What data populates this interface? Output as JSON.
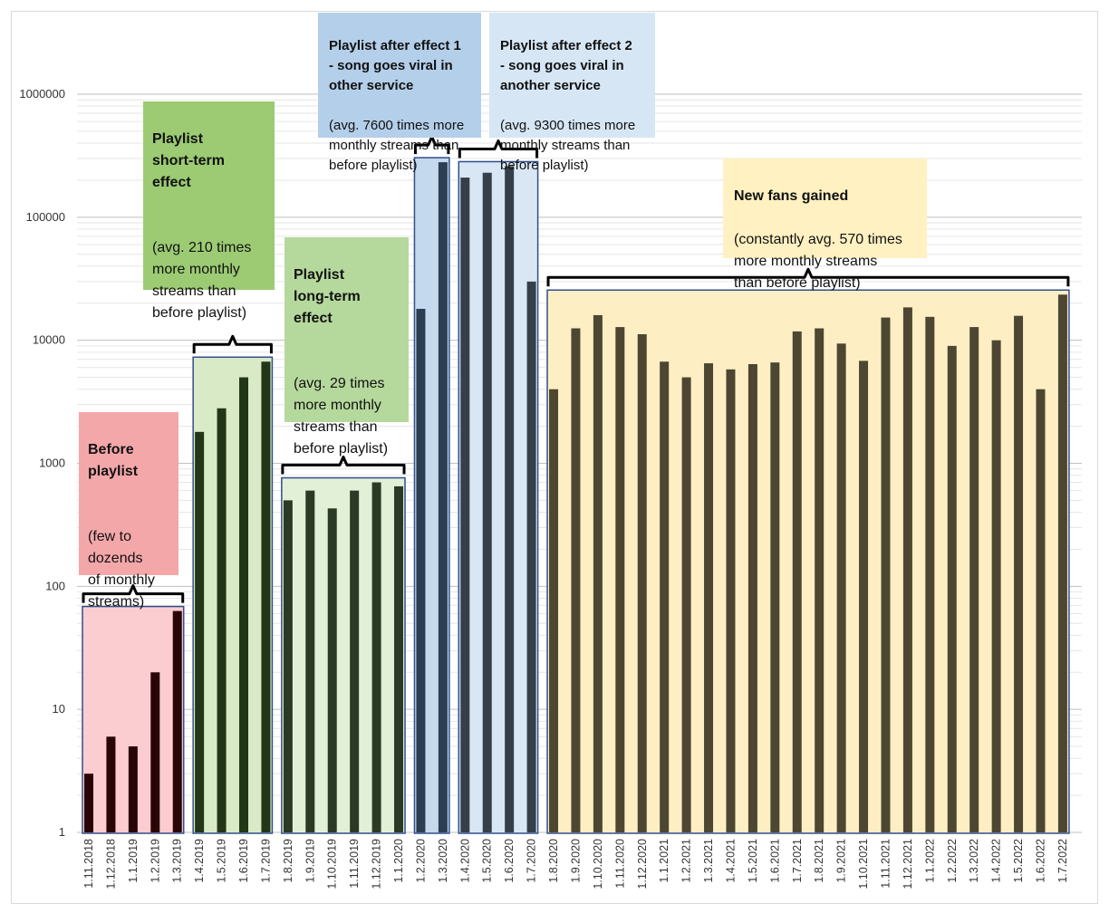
{
  "chart_data": {
    "type": "bar",
    "scale": "log",
    "ylim": [
      1,
      1000000
    ],
    "yticks": [
      "1",
      "10",
      "100",
      "1000",
      "10000",
      "100000",
      "1000000"
    ],
    "ytick_values": [
      1,
      10,
      100,
      1000,
      10000,
      100000,
      1000000
    ],
    "categories": [
      "1.11.2018",
      "1.12.2018",
      "1.1.2019",
      "1.2.2019",
      "1.3.2019",
      "1.4.2019",
      "1.5.2019",
      "1.6.2019",
      "1.7.2019",
      "1.8.2019",
      "1.9.2019",
      "1.10.2019",
      "1.11.2019",
      "1.12.2019",
      "1.1.2020",
      "1.2.2020",
      "1.3.2020",
      "1.4.2020",
      "1.5.2020",
      "1.6.2020",
      "1.7.2020",
      "1.8.2020",
      "1.9.2020",
      "1.10.2020",
      "1.11.2020",
      "1.12.2020",
      "1.1.2021",
      "1.2.2021",
      "1.3.2021",
      "1.4.2021",
      "1.5.2021",
      "1.6.2021",
      "1.7.2021",
      "1.8.2021",
      "1.9.2021",
      "1.10.2021",
      "1.11.2021",
      "1.12.2021",
      "1.1.2022",
      "1.2.2022",
      "1.3.2022",
      "1.4.2022",
      "1.5.2022",
      "1.6.2022",
      "1.7.2022"
    ],
    "values": [
      3,
      6,
      5,
      20,
      63,
      1800,
      2800,
      5000,
      6700,
      500,
      600,
      430,
      600,
      700,
      650,
      18000,
      280000,
      210000,
      230000,
      260000,
      30000,
      4000,
      12500,
      16000,
      12800,
      11200,
      6700,
      5000,
      6500,
      5800,
      6400,
      6600,
      11800,
      12500,
      9400,
      6800,
      15300,
      18500,
      15500,
      9000,
      12800,
      10000,
      15800,
      4000,
      23500
    ],
    "phases": [
      {
        "name": "Before playlist",
        "start": 0,
        "end": 4,
        "color": "#fbcdd0",
        "bar_color": "#2a0508",
        "title": "Before\nplaylist",
        "text": "(few to\ndozends\nof monthly\nstreams)"
      },
      {
        "name": "Playlist short-term effect",
        "start": 5,
        "end": 8,
        "color": "#d8ebc6",
        "bar_color": "#233618",
        "title": "Playlist\nshort-term\neffect",
        "text": "(avg. 210 times\nmore monthly\nstreams than\nbefore playlist)"
      },
      {
        "name": "Playlist long-term effect",
        "start": 9,
        "end": 14,
        "color": "#e2f0d8",
        "bar_color": "#2b3a24",
        "title": "Playlist\nlong-term\neffect",
        "text": "(avg. 29 times\nmore monthly\nstreams than\nbefore playlist)"
      },
      {
        "name": "Playlist after effect 1",
        "start": 15,
        "end": 16,
        "color": "#c4d8ee",
        "bar_color": "#2c3e52",
        "title": "Playlist after effect 1\n- song goes viral in\nother service",
        "text": "(avg. 7600 times more\nmonthly streams than\nbefore playlist)"
      },
      {
        "name": "Playlist after effect 2",
        "start": 17,
        "end": 20,
        "color": "#d9e7f5",
        "bar_color": "#353f4a",
        "title": "Playlist after effect 2\n- song goes viral in\nanother service",
        "text": "(avg. 9300 times more\nmonthly streams than\nbefore playlist)"
      },
      {
        "name": "New fans gained",
        "start": 21,
        "end": 44,
        "color": "#fdefc3",
        "bar_color": "#4d4632",
        "title": "New fans gained",
        "text": "(constantly avg. 570 times\nmore monthly streams\nthan before playlist)"
      }
    ],
    "colors": {
      "box_border": "#2f4e8c",
      "bracket": "#000000",
      "grid_major": "#bfbfbf",
      "grid_minor": "#e6e6e6",
      "axis_text": "#333333"
    }
  }
}
